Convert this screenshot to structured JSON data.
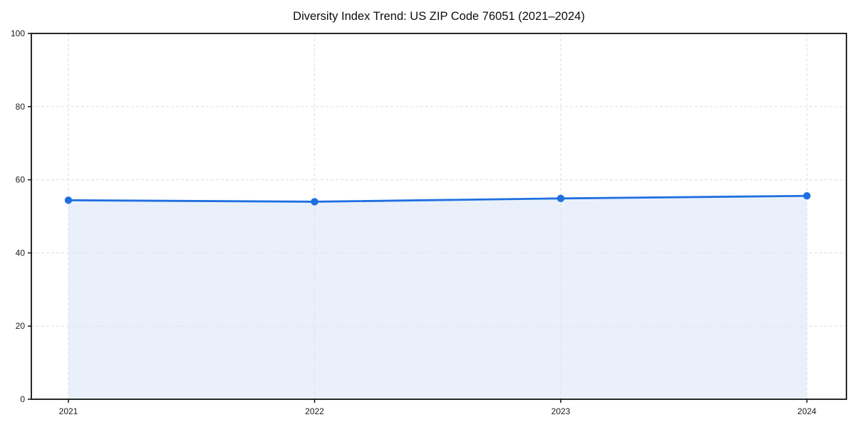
{
  "page": {
    "background_color": "#ffffff"
  },
  "chart_data": {
    "type": "area",
    "title": "Diversity Index Trend: US ZIP Code 76051 (2021–2024)",
    "x": [
      "2021",
      "2022",
      "2023",
      "2024"
    ],
    "series": [
      {
        "name": "Diversity Index",
        "values": [
          54.4,
          54.0,
          54.9,
          55.6
        ]
      }
    ],
    "xlabel": "",
    "ylabel": "",
    "ylim": [
      0,
      100
    ],
    "yticks": [
      0,
      20,
      40,
      60,
      80,
      100
    ],
    "grid": true,
    "grid_style": "dashed",
    "legend_position": "none",
    "colors": {
      "line": "#1f6fe0",
      "marker": "#1f6fe0",
      "area_fill": "#e9f0fc",
      "grid": "#e3e3e3",
      "spine": "#111111",
      "title_text": "#0d0d0d",
      "tick_text": "#1a1a1a"
    }
  }
}
